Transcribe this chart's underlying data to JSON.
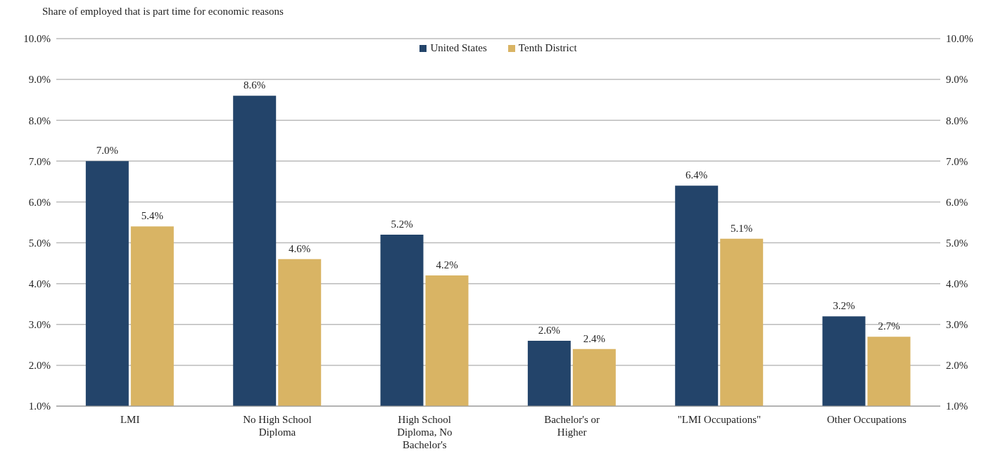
{
  "chart_data": {
    "type": "bar",
    "title": "Share of employed that is part time for economic reasons",
    "categories": [
      "LMI",
      "No High School Diploma",
      "High School Diploma, No Bachelor's",
      "Bachelor's or Higher",
      "\"LMI Occupations\"",
      "Other Occupations"
    ],
    "series": [
      {
        "name": "United States",
        "color": "#23446a",
        "values": [
          7.0,
          8.6,
          5.2,
          2.6,
          6.4,
          3.2
        ],
        "value_labels": [
          "7.0%",
          "8.6%",
          "5.2%",
          "2.6%",
          "6.4%",
          "3.2%"
        ]
      },
      {
        "name": "Tenth District",
        "color": "#d9b464",
        "values": [
          5.4,
          4.6,
          4.2,
          2.4,
          5.1,
          2.7
        ],
        "value_labels": [
          "5.4%",
          "4.6%",
          "4.2%",
          "2.4%",
          "5.1%",
          "2.7%"
        ]
      }
    ],
    "ylim": [
      1,
      10
    ],
    "yticks": [
      {
        "value": 1,
        "label": "1.0%"
      },
      {
        "value": 2,
        "label": "2.0%"
      },
      {
        "value": 3,
        "label": "3.0%"
      },
      {
        "value": 4,
        "label": "4.0%"
      },
      {
        "value": 5,
        "label": "5.0%"
      },
      {
        "value": 6,
        "label": "6.0%"
      },
      {
        "value": 7,
        "label": "7.0%"
      },
      {
        "value": 8,
        "label": "8.0%"
      },
      {
        "value": 9,
        "label": "9.0%"
      },
      {
        "value": 10,
        "label": "10.0%"
      }
    ],
    "y2lim": [
      1,
      10
    ],
    "y2ticks": [
      {
        "value": 1,
        "label": "1.0%"
      },
      {
        "value": 2,
        "label": "2.0%"
      },
      {
        "value": 3,
        "label": "3.0%"
      },
      {
        "value": 4,
        "label": "4.0%"
      },
      {
        "value": 5,
        "label": "5.0%"
      },
      {
        "value": 6,
        "label": "6.0%"
      },
      {
        "value": 7,
        "label": "7.0%"
      },
      {
        "value": 8,
        "label": "8.0%"
      },
      {
        "value": 9,
        "label": "9.0%"
      },
      {
        "value": 10,
        "label": "10.0%"
      }
    ],
    "grid": "y",
    "legend": "top"
  }
}
